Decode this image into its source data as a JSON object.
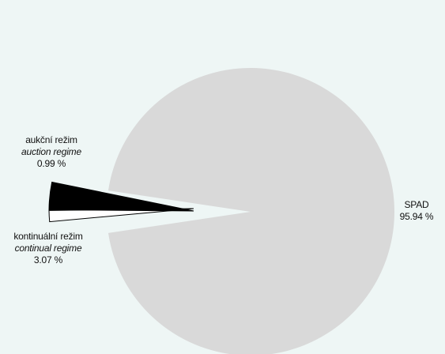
{
  "chart_data": {
    "type": "pie",
    "slices": [
      {
        "label_cz": "SPAD",
        "label_en": "",
        "value": 95.94,
        "value_label": "95.94 %",
        "color": "#d9d9d9"
      },
      {
        "label_cz": "aukční režim",
        "label_en": "auction regime",
        "value": 0.99,
        "value_label": "0.99 %",
        "color": "#ffffff"
      },
      {
        "label_cz": "kontinuální režim",
        "label_en": "continual regime",
        "value": 3.07,
        "value_label": "3.07 %",
        "color": "#000000"
      }
    ]
  },
  "colors": {
    "background": "#eef6f5",
    "slice_outline": "#000000"
  }
}
